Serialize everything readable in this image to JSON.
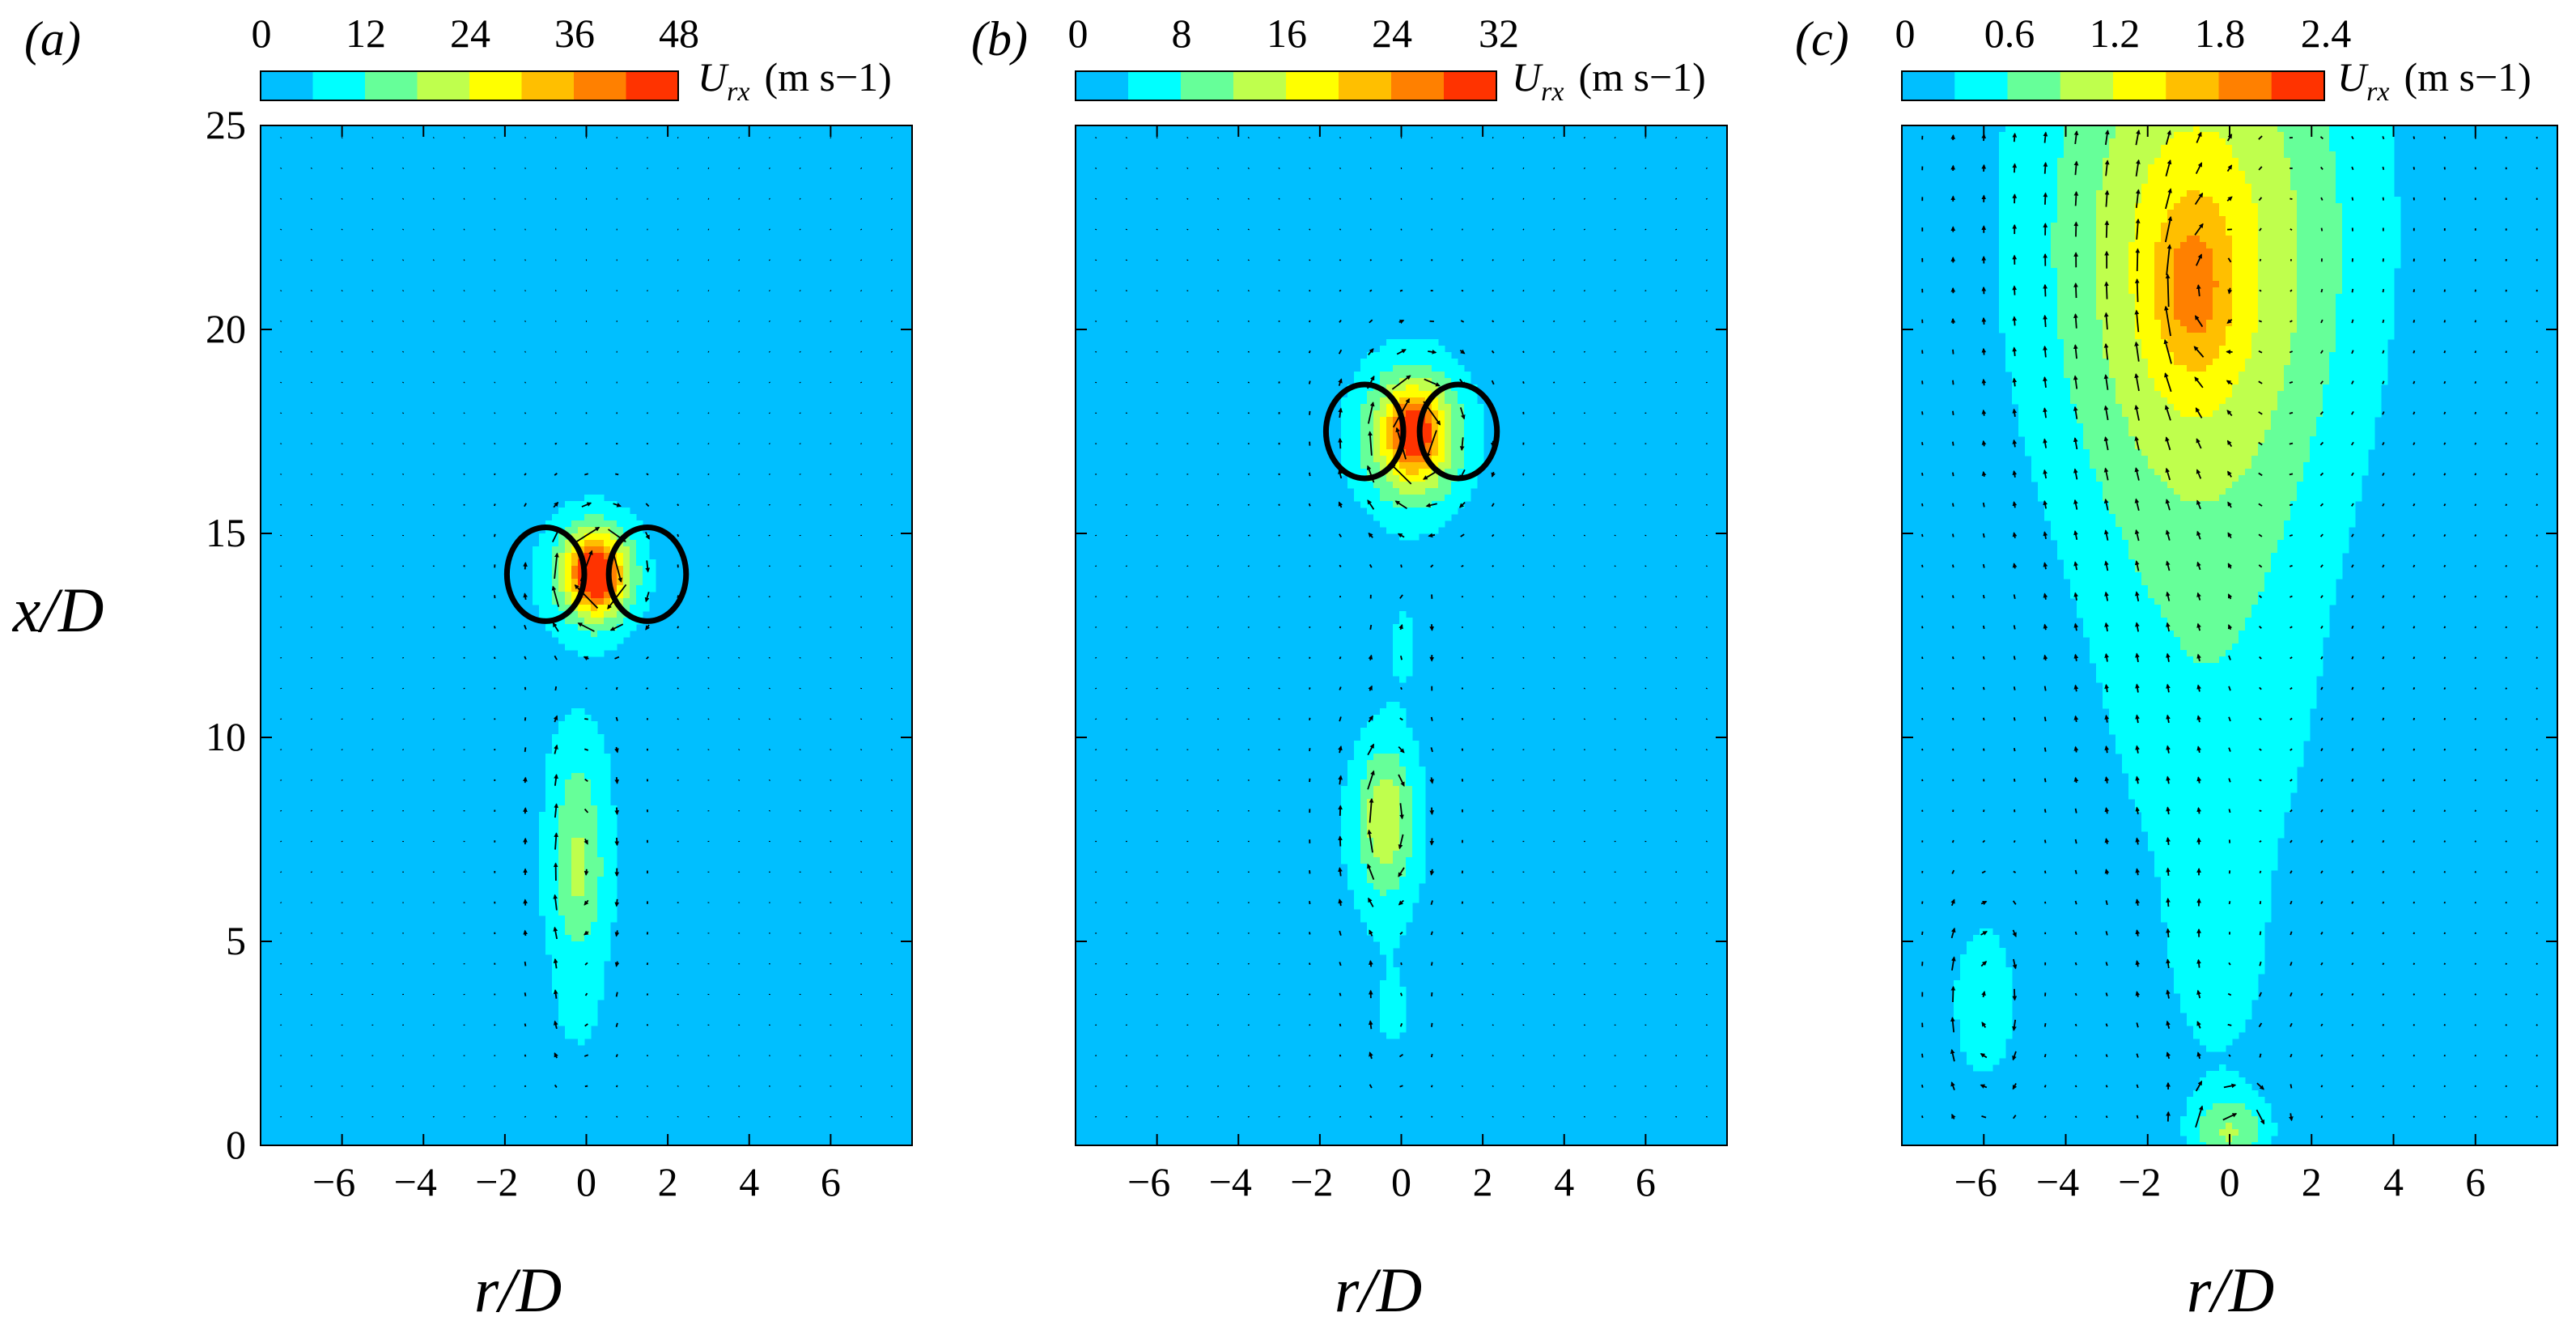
{
  "figure": {
    "ylabel_shared": "x/D",
    "colors": {
      "background": "#ffffff",
      "field_base": "#00bfff",
      "colormap": [
        "#00bfff",
        "#00ffff",
        "#66ff99",
        "#bfff4d",
        "#ffff00",
        "#ffbf00",
        "#ff8000",
        "#ff3300"
      ],
      "vortex": "#000000"
    }
  },
  "chart_data": [
    {
      "type": "heatmap",
      "panel_label": "(a)",
      "title": "",
      "xlabel": "r/D",
      "ylabel": "x/D",
      "xlim": [
        -8,
        8
      ],
      "ylim": [
        0,
        25
      ],
      "x_ticks": [
        -6,
        -4,
        -2,
        0,
        2,
        4,
        6
      ],
      "y_ticks": [
        0,
        5,
        10,
        15,
        20,
        25
      ],
      "colorbar": {
        "variable": "U",
        "subscript": "rx",
        "units": "(m s−1)",
        "min": 0,
        "max": 48,
        "tick_labels": [
          "0",
          "12",
          "24",
          "36",
          "48"
        ],
        "levels": 8
      },
      "vortex_ring_center_x": 14,
      "vortex_ring_cores_r": [
        -1,
        1.5
      ],
      "arrow_scale": 0.9,
      "blobs": [
        {
          "r": 0,
          "x": 14,
          "sr": 1.7,
          "sx": 2.1,
          "a": 0.2
        },
        {
          "r": 0.3,
          "x": 14,
          "sr": 0.9,
          "sx": 1.2,
          "a": 0.45
        },
        {
          "r": 0.2,
          "x": 14,
          "sr": 0.6,
          "sx": 0.8,
          "a": 0.55
        },
        {
          "r": -0.2,
          "x": 9.5,
          "sr": 0.9,
          "sx": 1.6,
          "a": 0.12
        },
        {
          "r": -0.2,
          "x": 6.5,
          "sr": 1.2,
          "sx": 3.2,
          "a": 0.2
        },
        {
          "r": -0.2,
          "x": 6.8,
          "sr": 0.6,
          "sx": 1.8,
          "a": 0.2
        },
        {
          "r": -0.2,
          "x": 3.2,
          "sr": 0.7,
          "sx": 1.5,
          "a": 0.1
        }
      ]
    },
    {
      "type": "heatmap",
      "panel_label": "(b)",
      "title": "",
      "xlabel": "r/D",
      "ylabel": "x/D",
      "xlim": [
        -8,
        8
      ],
      "ylim": [
        0,
        25
      ],
      "x_ticks": [
        -6,
        -4,
        -2,
        0,
        2,
        4,
        6
      ],
      "y_ticks": [
        0,
        5,
        10,
        15,
        20,
        25
      ],
      "colorbar": {
        "variable": "U",
        "subscript": "rx",
        "units": "(m s−1)",
        "min": 0,
        "max": 32,
        "tick_labels": [
          "0",
          "8",
          "16",
          "24",
          "32"
        ],
        "levels": 8
      },
      "vortex_ring_center_x": 17.5,
      "vortex_ring_cores_r": [
        -0.9,
        1.4
      ],
      "arrow_scale": 1.0,
      "blobs": [
        {
          "r": 0.2,
          "x": 17.5,
          "sr": 1.9,
          "sx": 2.4,
          "a": 0.2
        },
        {
          "r": 0.3,
          "x": 17.3,
          "sr": 1.2,
          "sx": 1.7,
          "a": 0.4
        },
        {
          "r": 0.3,
          "x": 17.5,
          "sr": 0.6,
          "sx": 0.9,
          "a": 0.5
        },
        {
          "r": 0.1,
          "x": 12.5,
          "sr": 0.6,
          "sx": 1.5,
          "a": 0.12
        },
        {
          "r": -0.4,
          "x": 7.8,
          "sr": 1.3,
          "sx": 3.2,
          "a": 0.22
        },
        {
          "r": -0.4,
          "x": 8.0,
          "sr": 0.6,
          "sx": 1.6,
          "a": 0.28
        },
        {
          "r": -0.2,
          "x": 3.0,
          "sr": 0.7,
          "sx": 1.6,
          "a": 0.12
        }
      ]
    },
    {
      "type": "heatmap",
      "panel_label": "(c)",
      "title": "",
      "xlabel": "r/D",
      "ylabel": "x/D",
      "xlim": [
        -8,
        8
      ],
      "ylim": [
        0,
        25
      ],
      "x_ticks": [
        -6,
        -4,
        -2,
        0,
        2,
        4,
        6
      ],
      "y_ticks": [
        0,
        5,
        10,
        15,
        20,
        25
      ],
      "colorbar": {
        "variable": "U",
        "subscript": "rx",
        "units": "(m s−1)",
        "min": 0,
        "max": 2.4,
        "tick_labels": [
          "0",
          "0.6",
          "1.2",
          "1.8",
          "2.4"
        ],
        "levels": 8
      },
      "arrow_scale": 1.5,
      "blobs": [
        {
          "r": -0.8,
          "x": 23,
          "sr": 4.8,
          "sx": 9,
          "a": 0.3
        },
        {
          "r": -0.8,
          "x": 21,
          "sr": 3.0,
          "sx": 6.5,
          "a": 0.3
        },
        {
          "r": -0.9,
          "x": 21,
          "sr": 0.9,
          "sx": 2.0,
          "a": 0.25
        },
        {
          "r": -0.4,
          "x": 10,
          "sr": 3.0,
          "sx": 6,
          "a": 0.16
        },
        {
          "r": -0.3,
          "x": 4,
          "sr": 1.4,
          "sx": 3,
          "a": 0.12
        },
        {
          "r": -6,
          "x": 3.5,
          "sr": 0.9,
          "sx": 2.3,
          "a": 0.22
        },
        {
          "r": 0,
          "x": 0.3,
          "sr": 1.0,
          "sx": 1.0,
          "a": 0.35
        }
      ]
    }
  ]
}
